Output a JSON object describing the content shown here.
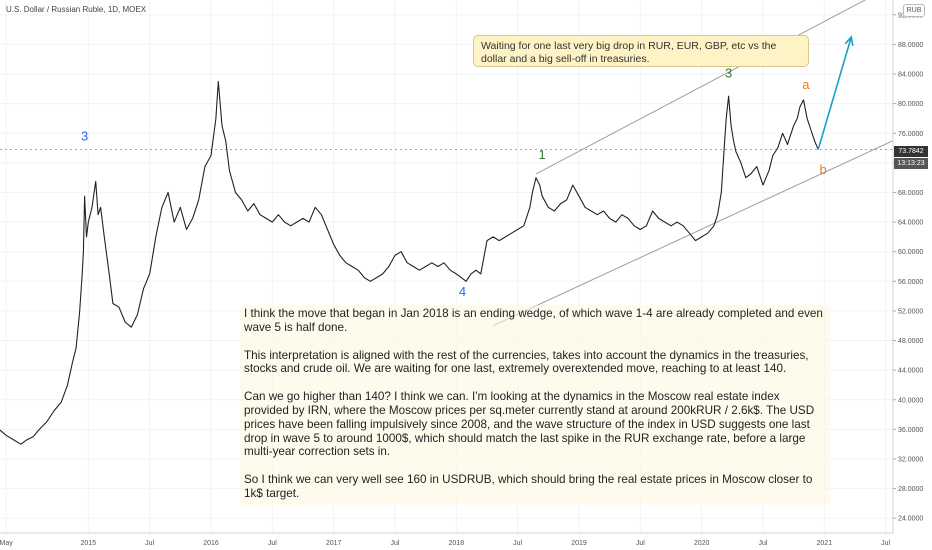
{
  "header": {
    "title": "U.S. Dollar / Russian Ruble, 1D, MOEX",
    "currency_button": "RUB"
  },
  "price_tag": "73.7842",
  "countdown_tag": "13:13:23",
  "colors": {
    "line": "#222222",
    "blue_label": "#2962ff",
    "green_label": "#2e7d32",
    "orange_label": "#f57c00",
    "arrow": "#1aa0c8",
    "channel": "#9e9e9e",
    "price_tag_bg": "#333333"
  },
  "note": {
    "text": "Waiting for one last very big drop in RUR, EUR, GBP, etc vs the dollar and a big sell-off in treasuries."
  },
  "analysis": {
    "paragraphs": [
      "I think the move that began in Jan 2018 is an ending wedge, of which wave 1-4 are already completed and even wave 5 is half done.",
      "This interpretation is aligned with the rest of the currencies, takes into account the dynamics in the treasuries, stocks and crude oil. We are waiting for one last, extremely overextended move, reaching to at least 140.",
      "Can we go higher than 140? I think we can. I'm looking at the dynamics in the Moscow real estate index provided by IRN, where the Moscow prices per sq.meter currently stand at around 200kRUR / 2.6k$. The USD prices have been falling impulsively since 2008, and the wave structure of the index in USD suggests one last drop in wave 5 to around 1000$, which should match the last spike in the RUR exchange rate, before a large multi-year correction sets in.",
      "So I think we can very well see 160 in USDRUB, which should bring the real estate prices in Moscow closer to 1k$ target."
    ]
  },
  "chart_data": {
    "type": "line",
    "title": "U.S. Dollar / Russian Ruble, 1D, MOEX",
    "ylim": [
      22,
      94
    ],
    "xlim": [
      2014.28,
      2021.56
    ],
    "y_ticks": [
      24,
      28,
      32,
      36,
      40,
      44,
      48,
      52,
      56,
      60,
      64,
      68,
      72,
      76,
      80,
      84,
      88,
      92
    ],
    "y_tick_labels": [
      "24.0000",
      "28.0000",
      "32.0000",
      "36.0000",
      "40.0000",
      "44.0000",
      "48.0000",
      "52.0000",
      "56.0000",
      "60.0000",
      "64.0000",
      "68.0000",
      "72.0000",
      "76.0000",
      "80.0000",
      "84.0000",
      "88.0000",
      "92.0000"
    ],
    "x_ticks": [
      {
        "x": 2014.33,
        "label": "May"
      },
      {
        "x": 2015.0,
        "label": "2015"
      },
      {
        "x": 2015.5,
        "label": "Jul"
      },
      {
        "x": 2016.0,
        "label": "2016"
      },
      {
        "x": 2016.5,
        "label": "Jul"
      },
      {
        "x": 2017.0,
        "label": "2017"
      },
      {
        "x": 2017.5,
        "label": "Jul"
      },
      {
        "x": 2018.0,
        "label": "2018"
      },
      {
        "x": 2018.5,
        "label": "Jul"
      },
      {
        "x": 2019.0,
        "label": "2019"
      },
      {
        "x": 2019.5,
        "label": "Jul"
      },
      {
        "x": 2020.0,
        "label": "2020"
      },
      {
        "x": 2020.5,
        "label": "Jul"
      },
      {
        "x": 2021.0,
        "label": "2021"
      },
      {
        "x": 2021.5,
        "label": "Jul"
      }
    ],
    "series": [
      {
        "points": [
          [
            2014.28,
            35.9
          ],
          [
            2014.33,
            35.2
          ],
          [
            2014.4,
            34.5
          ],
          [
            2014.45,
            34.0
          ],
          [
            2014.5,
            34.6
          ],
          [
            2014.55,
            35.0
          ],
          [
            2014.6,
            36.0
          ],
          [
            2014.66,
            37.0
          ],
          [
            2014.72,
            38.5
          ],
          [
            2014.78,
            39.7
          ],
          [
            2014.83,
            42.0
          ],
          [
            2014.87,
            45.0
          ],
          [
            2014.9,
            47.0
          ],
          [
            2014.93,
            52.0
          ],
          [
            2014.95,
            57.0
          ],
          [
            2014.96,
            60.0
          ],
          [
            2014.97,
            67.5
          ],
          [
            2014.985,
            62.0
          ],
          [
            2015.0,
            64.0
          ],
          [
            2015.03,
            66.0
          ],
          [
            2015.06,
            69.5
          ],
          [
            2015.08,
            65.0
          ],
          [
            2015.1,
            66.0
          ],
          [
            2015.13,
            62.0
          ],
          [
            2015.17,
            57.0
          ],
          [
            2015.2,
            53.0
          ],
          [
            2015.25,
            52.5
          ],
          [
            2015.3,
            50.5
          ],
          [
            2015.35,
            49.8
          ],
          [
            2015.4,
            51.5
          ],
          [
            2015.45,
            55.0
          ],
          [
            2015.5,
            57.0
          ],
          [
            2015.55,
            62.0
          ],
          [
            2015.6,
            66.0
          ],
          [
            2015.65,
            68.0
          ],
          [
            2015.7,
            64.0
          ],
          [
            2015.75,
            66.0
          ],
          [
            2015.8,
            63.0
          ],
          [
            2015.85,
            64.5
          ],
          [
            2015.9,
            67.0
          ],
          [
            2015.95,
            71.5
          ],
          [
            2016.0,
            73.0
          ],
          [
            2016.04,
            78.0
          ],
          [
            2016.06,
            83.0
          ],
          [
            2016.09,
            77.0
          ],
          [
            2016.12,
            75.0
          ],
          [
            2016.15,
            71.0
          ],
          [
            2016.2,
            68.0
          ],
          [
            2016.25,
            67.0
          ],
          [
            2016.3,
            65.5
          ],
          [
            2016.35,
            66.5
          ],
          [
            2016.4,
            65.0
          ],
          [
            2016.45,
            64.5
          ],
          [
            2016.5,
            64.0
          ],
          [
            2016.55,
            65.0
          ],
          [
            2016.6,
            64.0
          ],
          [
            2016.65,
            63.5
          ],
          [
            2016.7,
            64.0
          ],
          [
            2016.75,
            64.5
          ],
          [
            2016.8,
            64.0
          ],
          [
            2016.85,
            66.0
          ],
          [
            2016.9,
            65.0
          ],
          [
            2016.95,
            63.0
          ],
          [
            2017.0,
            61.0
          ],
          [
            2017.05,
            59.5
          ],
          [
            2017.1,
            58.5
          ],
          [
            2017.15,
            58.0
          ],
          [
            2017.2,
            57.5
          ],
          [
            2017.25,
            56.5
          ],
          [
            2017.3,
            56.0
          ],
          [
            2017.35,
            56.5
          ],
          [
            2017.4,
            57.0
          ],
          [
            2017.45,
            58.0
          ],
          [
            2017.5,
            59.5
          ],
          [
            2017.55,
            60.0
          ],
          [
            2017.6,
            58.5
          ],
          [
            2017.65,
            58.0
          ],
          [
            2017.7,
            57.5
          ],
          [
            2017.75,
            58.0
          ],
          [
            2017.8,
            58.5
          ],
          [
            2017.85,
            58.0
          ],
          [
            2017.9,
            58.5
          ],
          [
            2017.95,
            57.5
          ],
          [
            2018.0,
            57.0
          ],
          [
            2018.04,
            56.5
          ],
          [
            2018.08,
            56.0
          ],
          [
            2018.12,
            57.0
          ],
          [
            2018.16,
            57.5
          ],
          [
            2018.2,
            57.0
          ],
          [
            2018.25,
            61.5
          ],
          [
            2018.3,
            62.0
          ],
          [
            2018.35,
            61.5
          ],
          [
            2018.4,
            62.0
          ],
          [
            2018.45,
            62.5
          ],
          [
            2018.5,
            63.0
          ],
          [
            2018.55,
            63.5
          ],
          [
            2018.6,
            66.0
          ],
          [
            2018.62,
            68.0
          ],
          [
            2018.65,
            70.0
          ],
          [
            2018.68,
            69.0
          ],
          [
            2018.7,
            67.5
          ],
          [
            2018.75,
            66.0
          ],
          [
            2018.8,
            65.5
          ],
          [
            2018.85,
            66.5
          ],
          [
            2018.9,
            67.0
          ],
          [
            2018.95,
            69.0
          ],
          [
            2019.0,
            67.5
          ],
          [
            2019.05,
            66.0
          ],
          [
            2019.1,
            65.5
          ],
          [
            2019.15,
            65.0
          ],
          [
            2019.2,
            65.5
          ],
          [
            2019.25,
            64.5
          ],
          [
            2019.3,
            64.0
          ],
          [
            2019.35,
            65.0
          ],
          [
            2019.4,
            64.5
          ],
          [
            2019.45,
            63.5
          ],
          [
            2019.5,
            63.0
          ],
          [
            2019.55,
            63.5
          ],
          [
            2019.6,
            65.5
          ],
          [
            2019.65,
            64.5
          ],
          [
            2019.7,
            64.0
          ],
          [
            2019.75,
            63.5
          ],
          [
            2019.8,
            64.0
          ],
          [
            2019.85,
            63.5
          ],
          [
            2019.9,
            62.5
          ],
          [
            2019.95,
            61.5
          ],
          [
            2020.0,
            62.0
          ],
          [
            2020.05,
            62.5
          ],
          [
            2020.1,
            63.5
          ],
          [
            2020.13,
            65.0
          ],
          [
            2020.16,
            68.0
          ],
          [
            2020.18,
            73.0
          ],
          [
            2020.2,
            78.0
          ],
          [
            2020.22,
            81.0
          ],
          [
            2020.24,
            77.0
          ],
          [
            2020.26,
            75.0
          ],
          [
            2020.28,
            73.5
          ],
          [
            2020.32,
            72.0
          ],
          [
            2020.36,
            70.0
          ],
          [
            2020.4,
            70.5
          ],
          [
            2020.45,
            71.5
          ],
          [
            2020.5,
            69.0
          ],
          [
            2020.55,
            71.0
          ],
          [
            2020.58,
            73.0
          ],
          [
            2020.62,
            74.0
          ],
          [
            2020.66,
            76.0
          ],
          [
            2020.7,
            74.5
          ],
          [
            2020.75,
            77.0
          ],
          [
            2020.78,
            78.0
          ],
          [
            2020.8,
            79.5
          ],
          [
            2020.83,
            80.5
          ],
          [
            2020.86,
            78.0
          ],
          [
            2020.89,
            76.5
          ],
          [
            2020.92,
            75.0
          ],
          [
            2020.95,
            73.8
          ]
        ]
      }
    ],
    "wave_labels": [
      {
        "x": 2014.97,
        "y": 75.0,
        "text": "3",
        "color": "blue"
      },
      {
        "x": 2018.05,
        "y": 54.0,
        "text": "4",
        "color": "blue"
      },
      {
        "x": 2018.7,
        "y": 72.5,
        "text": "1",
        "color": "green"
      },
      {
        "x": 2020.22,
        "y": 83.5,
        "text": "3",
        "color": "green"
      },
      {
        "x": 2020.85,
        "y": 82.0,
        "text": "a",
        "color": "orange"
      },
      {
        "x": 2020.99,
        "y": 70.5,
        "text": "b",
        "color": "orange"
      }
    ],
    "channel": {
      "upper": [
        [
          2018.65,
          70.5
        ],
        [
          2021.56,
          96.0
        ]
      ],
      "lower": [
        [
          2018.3,
          50.0
        ],
        [
          2021.56,
          75.0
        ]
      ]
    },
    "arrow": [
      [
        2020.95,
        73.8
      ],
      [
        2021.22,
        89.0
      ]
    ],
    "current_price": 73.7842
  }
}
